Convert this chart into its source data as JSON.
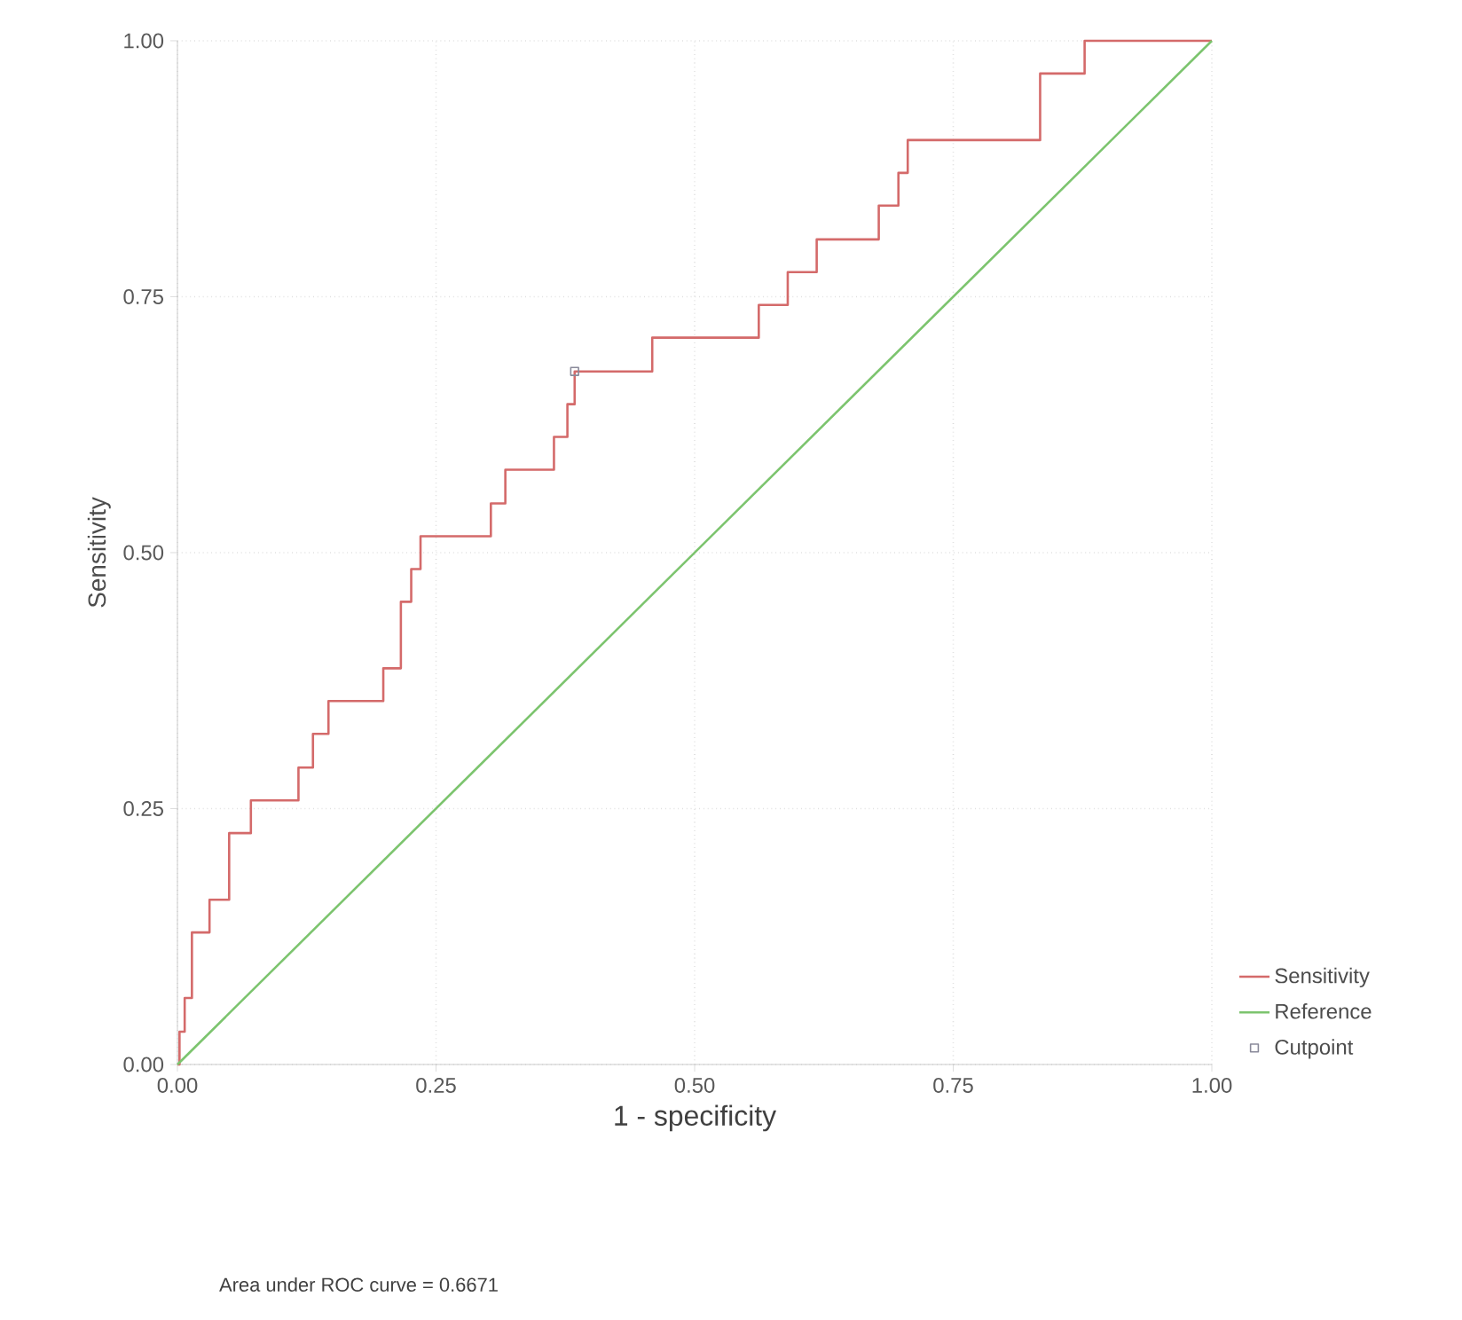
{
  "chart_data": {
    "type": "line",
    "xlabel": "1 - specificity",
    "ylabel": "Sensitivity",
    "xlim": [
      0,
      1
    ],
    "ylim": [
      0,
      1
    ],
    "xticks": [
      {
        "value": 0,
        "label": "0.00"
      },
      {
        "value": 0.25,
        "label": "0.25"
      },
      {
        "value": 0.5,
        "label": "0.50"
      },
      {
        "value": 0.75,
        "label": "0.75"
      },
      {
        "value": 1,
        "label": "1.00"
      }
    ],
    "yticks": [
      {
        "value": 0,
        "label": "0.00"
      },
      {
        "value": 0.25,
        "label": "0.25"
      },
      {
        "value": 0.5,
        "label": "0.50"
      },
      {
        "value": 0.75,
        "label": "0.75"
      },
      {
        "value": 1,
        "label": "1.00"
      }
    ],
    "grid": true,
    "legend": "bottom right",
    "series": [
      {
        "name": "Sensitivity",
        "type": "step",
        "color": "#d46a6a",
        "marker": "none",
        "x": [
          0,
          0.002,
          0.007,
          0.014,
          0.031,
          0.05,
          0.071,
          0.117,
          0.131,
          0.146,
          0.199,
          0.216,
          0.226,
          0.235,
          0.303,
          0.317,
          0.364,
          0.377,
          0.384,
          0.459,
          0.562,
          0.59,
          0.618,
          0.678,
          0.697,
          0.706,
          0.834,
          0.877,
          1
        ],
        "values": [
          0,
          0.032,
          0.065,
          0.129,
          0.161,
          0.226,
          0.258,
          0.29,
          0.323,
          0.355,
          0.387,
          0.452,
          0.484,
          0.516,
          0.548,
          0.581,
          0.613,
          0.645,
          0.677,
          0.71,
          0.742,
          0.774,
          0.806,
          0.839,
          0.871,
          0.903,
          0.968,
          1,
          1
        ]
      },
      {
        "name": "Reference",
        "color": "#7cc46e",
        "marker": "none",
        "x": [
          0,
          1
        ],
        "values": [
          0,
          1
        ]
      },
      {
        "name": "Cutpoint",
        "type": "scatter",
        "color": "#8a8a9a",
        "marker": "square",
        "x": [
          0.384
        ],
        "values": [
          0.677
        ]
      }
    ],
    "annotations": [
      "Area under ROC curve = 0.6671"
    ]
  }
}
